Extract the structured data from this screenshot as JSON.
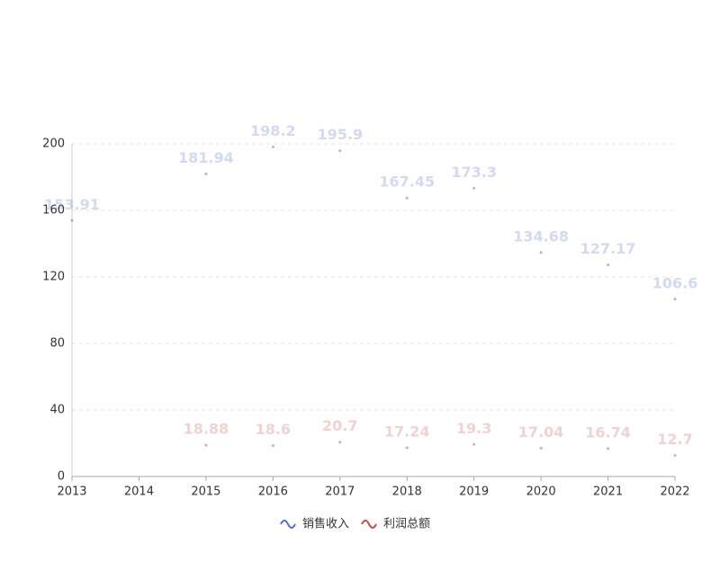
{
  "chart_data": {
    "type": "line",
    "show_line": false,
    "grid": true,
    "legend": "bottom",
    "categories": [
      "2013",
      "2014",
      "2015",
      "2016",
      "2017",
      "2018",
      "2019",
      "2020",
      "2021",
      "2022"
    ],
    "series": [
      {
        "name": "销售收入",
        "color": "#5470c6",
        "values": [
          153.91,
          null,
          181.94,
          198.2,
          195.9,
          167.45,
          173.3,
          134.68,
          127.17,
          106.6
        ]
      },
      {
        "name": "利润总额",
        "color": "#c0504d",
        "values": [
          null,
          null,
          18.88,
          18.6,
          20.7,
          17.24,
          19.3,
          17.04,
          16.74,
          12.7
        ]
      }
    ],
    "ylim": [
      0,
      200
    ],
    "yticks": [
      0,
      40,
      80,
      120,
      160,
      200
    ]
  }
}
